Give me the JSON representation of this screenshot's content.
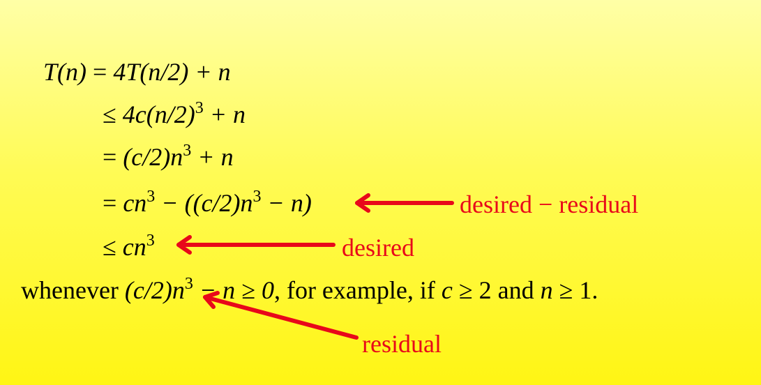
{
  "derivation": {
    "line1": {
      "lhs": "T(n)",
      "rel": "=",
      "expr": "4T(n/2) + n"
    },
    "line2": {
      "rel": "≤",
      "expr_a": "4c(n/2)",
      "exp": "3",
      "expr_b": " + n"
    },
    "line3": {
      "rel": "=",
      "expr_a": "(c/2)n",
      "exp": "3",
      "expr_b": " + n"
    },
    "line4": {
      "rel": "=",
      "expr_a": "cn",
      "exp1": "3",
      "expr_b": " − ((c/2)n",
      "exp2": "3",
      "expr_c": " − n)"
    },
    "line5": {
      "rel": "≤",
      "expr_a": "cn",
      "exp": "3"
    },
    "condition": {
      "t1": "whenever ",
      "t2": "(c/2)n",
      "exp": "3",
      "t3": " − n ≥ 0",
      "t4": ", for example, if ",
      "t5": "c",
      "t6": " ≥ 2 and ",
      "t7": "n",
      "t8": " ≥ 1."
    }
  },
  "annotations": {
    "desired_minus_residual": "desired − residual",
    "desired": "desired",
    "residual": "residual"
  },
  "colors": {
    "annotation": "#e8081a",
    "background_top": "#ffffa6",
    "background_bottom": "#fff514"
  }
}
